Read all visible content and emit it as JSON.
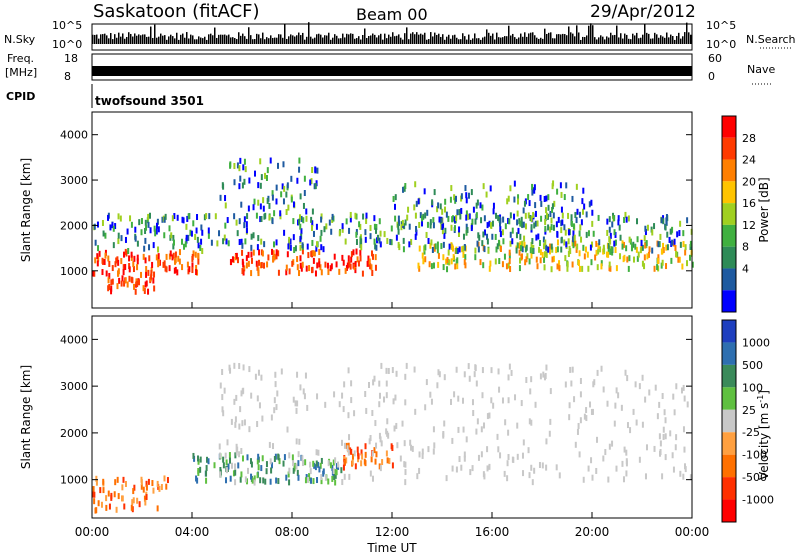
{
  "header": {
    "station": "Saskatoon (fitACF)",
    "beam": "Beam 00",
    "date": "29/Apr/2012"
  },
  "top_panels": {
    "nsky_label": "N.Sky",
    "nsky_ticks": [
      "10^5",
      "10^0"
    ],
    "nsearch_label": "N.Search",
    "nsearch_ticks": [
      "10^5",
      "10^0"
    ],
    "freq_label_1": "Freq.",
    "freq_label_2": "[MHz]",
    "freq_ticks": [
      "18",
      "8"
    ],
    "nave_label": "Nave",
    "nave_ticks": [
      "60",
      "0"
    ],
    "cpid_label": "CPID",
    "cpid_text": "twofsound 3501"
  },
  "chart_data": [
    {
      "type": "heatmap",
      "name": "power",
      "ylabel": "Slant Range [km]",
      "ylim": [
        180,
        4500
      ],
      "yticks": [
        1000,
        2000,
        3000,
        4000
      ],
      "xlim": [
        0,
        24
      ],
      "colorbar": {
        "label": "Power [dB]",
        "ticks": [
          "28",
          "24",
          "20",
          "16",
          "12",
          "8",
          "4"
        ],
        "colors": [
          "#ff0000",
          "#ff3a00",
          "#ff7f00",
          "#ffc400",
          "#a0d020",
          "#40b040",
          "#2e8b57",
          "#1e5aa0",
          "#0000ff"
        ]
      },
      "scatter_regions": [
        {
          "t0": 0.0,
          "t1": 4.5,
          "r0": 1000,
          "r1": 1500,
          "level": "high"
        },
        {
          "t0": 0.5,
          "t1": 2.5,
          "r0": 600,
          "r1": 1000,
          "level": "high"
        },
        {
          "t0": 5.5,
          "t1": 11.5,
          "r0": 1000,
          "r1": 1500,
          "level": "high"
        },
        {
          "t0": 13.0,
          "t1": 24.0,
          "r0": 1100,
          "r1": 1700,
          "level": "mid"
        },
        {
          "t0": 0.0,
          "t1": 24.0,
          "r0": 1500,
          "r1": 2300,
          "level": "low"
        },
        {
          "t0": 5.0,
          "t1": 9.0,
          "r0": 2300,
          "r1": 3500,
          "level": "low"
        },
        {
          "t0": 12.0,
          "t1": 20.0,
          "r0": 2000,
          "r1": 3000,
          "level": "low"
        }
      ]
    },
    {
      "type": "heatmap",
      "name": "velocity",
      "ylabel": "Slant Range [km]",
      "xlabel": "Time UT",
      "ylim": [
        180,
        4500
      ],
      "yticks": [
        1000,
        2000,
        3000,
        4000
      ],
      "xlim": [
        0,
        24
      ],
      "xticks": [
        "00:00",
        "04:00",
        "08:00",
        "12:00",
        "16:00",
        "20:00",
        "00:00"
      ],
      "colorbar": {
        "label_main": "Velocity [m s",
        "label_sup": "-1",
        "label_end": "]",
        "ticks": [
          "1000",
          "500",
          "100",
          "25",
          "-25",
          "-100",
          "-500",
          "-1000"
        ],
        "colors": [
          "#1e3fbf",
          "#2e6fb0",
          "#3a8a5a",
          "#5fc040",
          "#c8c8c8",
          "#ffa040",
          "#ff7000",
          "#ff3000",
          "#ff0000"
        ]
      },
      "scatter_regions": [
        {
          "t0": 0.0,
          "t1": 3.0,
          "r0": 400,
          "r1": 1100,
          "level": "orange"
        },
        {
          "t0": 4.0,
          "t1": 10.0,
          "r0": 1000,
          "r1": 1600,
          "level": "green"
        },
        {
          "t0": 10.0,
          "t1": 12.0,
          "r0": 1300,
          "r1": 1800,
          "level": "orange"
        },
        {
          "t0": 5.0,
          "t1": 24.0,
          "r0": 1000,
          "r1": 3500,
          "level": "grey"
        }
      ]
    }
  ],
  "colors": {
    "nsky_bar": "#000000",
    "freq_bar": "#000000"
  }
}
